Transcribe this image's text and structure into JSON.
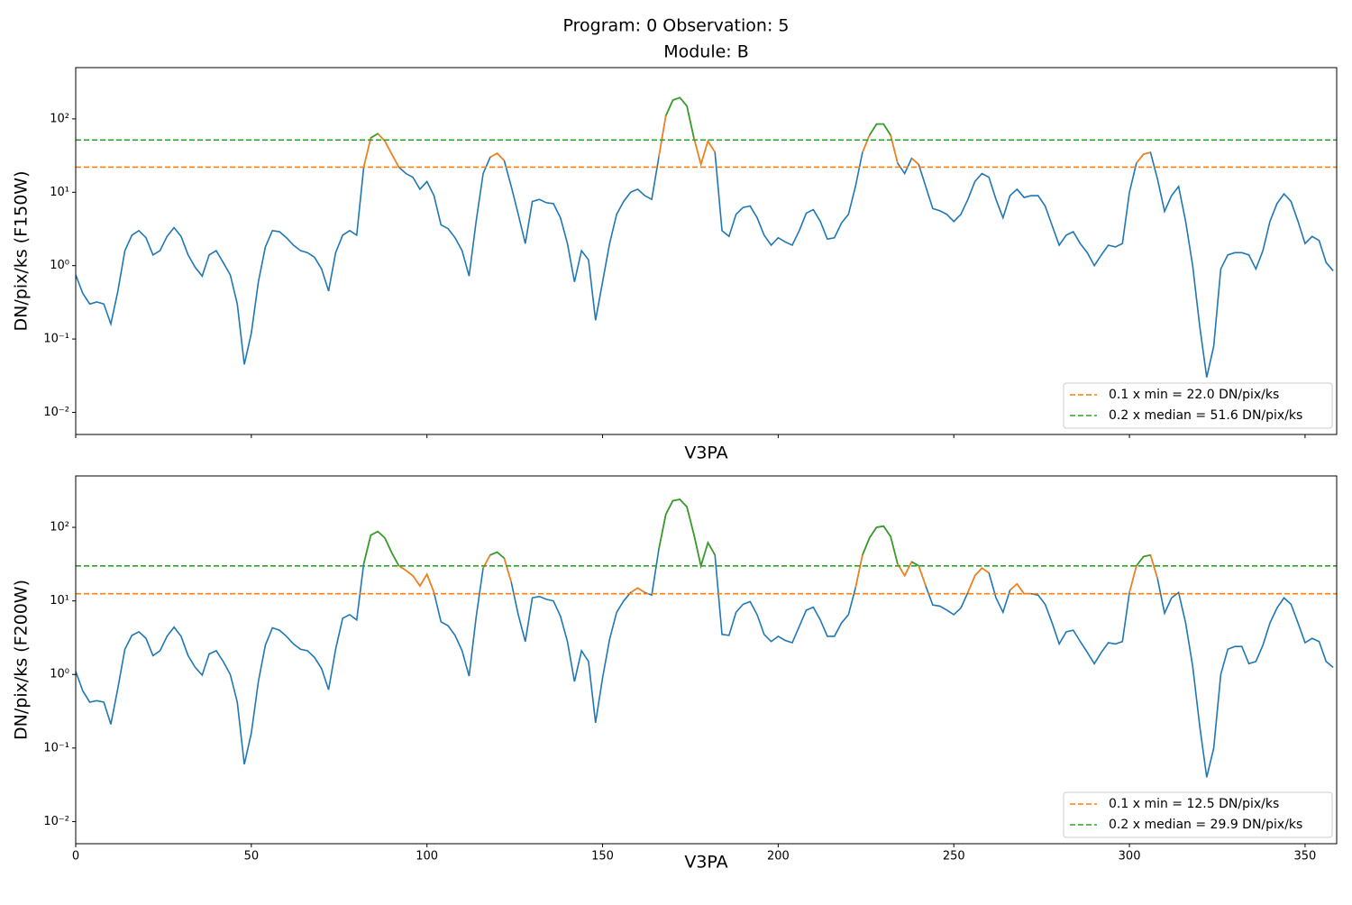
{
  "title": "Program: 0 Observation: 5",
  "chart_data": [
    {
      "type": "line",
      "title": "Module: B",
      "xlabel": "V3PA",
      "ylabel": "DN/pix/ks (F150W)",
      "yscale": "log",
      "xlim": [
        0,
        359
      ],
      "ylim": [
        0.005,
        500
      ],
      "xticks": [
        0,
        50,
        100,
        150,
        200,
        250,
        300,
        350
      ],
      "show_xtick_labels": false,
      "yticks": [
        {
          "value": 0.01,
          "label": "10⁻²"
        },
        {
          "value": 0.1,
          "label": "10⁻¹"
        },
        {
          "value": 1,
          "label": "10⁰"
        },
        {
          "value": 10,
          "label": "10¹"
        },
        {
          "value": 100,
          "label": "10²"
        }
      ],
      "legend_loc": "lower right",
      "x": [
        0,
        2,
        4,
        6,
        8,
        10,
        12,
        14,
        16,
        18,
        20,
        22,
        24,
        26,
        28,
        30,
        32,
        34,
        36,
        38,
        40,
        42,
        44,
        46,
        48,
        50,
        52,
        54,
        56,
        58,
        60,
        62,
        64,
        66,
        68,
        70,
        72,
        74,
        76,
        78,
        80,
        82,
        84,
        86,
        88,
        90,
        92,
        94,
        96,
        98,
        100,
        102,
        104,
        106,
        108,
        110,
        112,
        114,
        116,
        118,
        120,
        122,
        124,
        126,
        128,
        130,
        132,
        134,
        136,
        138,
        140,
        142,
        144,
        146,
        148,
        150,
        152,
        154,
        156,
        158,
        160,
        162,
        164,
        166,
        168,
        170,
        172,
        174,
        176,
        178,
        180,
        182,
        184,
        186,
        188,
        190,
        192,
        194,
        196,
        198,
        200,
        202,
        204,
        206,
        208,
        210,
        212,
        214,
        216,
        218,
        220,
        222,
        224,
        226,
        228,
        230,
        232,
        234,
        236,
        238,
        240,
        242,
        244,
        246,
        248,
        250,
        252,
        254,
        256,
        258,
        260,
        262,
        264,
        266,
        268,
        270,
        272,
        274,
        276,
        278,
        280,
        282,
        284,
        286,
        288,
        290,
        292,
        294,
        296,
        298,
        300,
        302,
        304,
        306,
        308,
        310,
        312,
        314,
        316,
        318,
        320,
        322,
        324,
        326,
        328,
        330,
        332,
        334,
        336,
        338,
        340,
        342,
        344,
        346,
        348,
        350,
        352,
        354,
        356,
        358
      ],
      "series": [
        {
          "color": "#1f77b4",
          "values": [
            0.75,
            0.42,
            0.3,
            0.32,
            0.3,
            0.16,
            0.45,
            1.6,
            2.6,
            3.0,
            2.4,
            1.4,
            1.6,
            2.5,
            3.3,
            2.5,
            1.4,
            0.95,
            0.72,
            1.4,
            1.6,
            1.1,
            0.75,
            0.3,
            0.045,
            0.12,
            0.6,
            1.8,
            3.0,
            2.9,
            2.4,
            1.9,
            1.6,
            1.5,
            1.3,
            0.9,
            0.45,
            1.5,
            2.6,
            3.0,
            2.6,
            22,
            55,
            63,
            50,
            33,
            22,
            18,
            16,
            11,
            14,
            9,
            3.6,
            3.2,
            2.4,
            1.6,
            0.72,
            4,
            18,
            30,
            34,
            27,
            12,
            5,
            2.0,
            7.5,
            8,
            7.2,
            7.0,
            4.5,
            2.0,
            0.6,
            1.6,
            1.2,
            0.18,
            0.6,
            2.0,
            5,
            7.5,
            10,
            11,
            9,
            8,
            30,
            110,
            180,
            195,
            150,
            55,
            24,
            50,
            35,
            3,
            2.5,
            5,
            6.2,
            6.5,
            4.5,
            2.6,
            1.9,
            2.4,
            2.1,
            1.9,
            3.0,
            5.2,
            5.8,
            4.0,
            2.3,
            2.4,
            3.8,
            5,
            12,
            35,
            60,
            85,
            85,
            60,
            25,
            18,
            29,
            24,
            12,
            6,
            5.6,
            5,
            4,
            5,
            8,
            14,
            18,
            16,
            8,
            4.5,
            9,
            11,
            8.5,
            9,
            9,
            6.5,
            3.5,
            1.9,
            2.6,
            2.9,
            2.0,
            1.5,
            1.0,
            1.4,
            1.9,
            1.8,
            2.0,
            10,
            25,
            33,
            35,
            15,
            5.5,
            9,
            12,
            4,
            1.0,
            0.15,
            0.03,
            0.08,
            0.9,
            1.4,
            1.5,
            1.5,
            1.4,
            0.9,
            1.6,
            4,
            7,
            9.5,
            7.5,
            4,
            2.0,
            2.5,
            2.2,
            1.1,
            0.85
          ]
        }
      ],
      "thresholds": [
        {
          "name": "0.1 x min = 22.0 DN/pix/ks",
          "value": 22.0,
          "color": "#ff7f0e"
        },
        {
          "name": "0.2 x median = 51.6 DN/pix/ks",
          "value": 51.6,
          "color": "#2ca02c"
        }
      ]
    },
    {
      "type": "line",
      "xlabel": "V3PA",
      "ylabel": "DN/pix/ks (F200W)",
      "yscale": "log",
      "xlim": [
        0,
        359
      ],
      "ylim": [
        0.005,
        500
      ],
      "xticks": [
        0,
        50,
        100,
        150,
        200,
        250,
        300,
        350
      ],
      "show_xtick_labels": true,
      "yticks": [
        {
          "value": 0.01,
          "label": "10⁻²"
        },
        {
          "value": 0.1,
          "label": "10⁻¹"
        },
        {
          "value": 1,
          "label": "10⁰"
        },
        {
          "value": 10,
          "label": "10¹"
        },
        {
          "value": 100,
          "label": "10²"
        }
      ],
      "legend_loc": "lower right",
      "x": [
        0,
        2,
        4,
        6,
        8,
        10,
        12,
        14,
        16,
        18,
        20,
        22,
        24,
        26,
        28,
        30,
        32,
        34,
        36,
        38,
        40,
        42,
        44,
        46,
        48,
        50,
        52,
        54,
        56,
        58,
        60,
        62,
        64,
        66,
        68,
        70,
        72,
        74,
        76,
        78,
        80,
        82,
        84,
        86,
        88,
        90,
        92,
        94,
        96,
        98,
        100,
        102,
        104,
        106,
        108,
        110,
        112,
        114,
        116,
        118,
        120,
        122,
        124,
        126,
        128,
        130,
        132,
        134,
        136,
        138,
        140,
        142,
        144,
        146,
        148,
        150,
        152,
        154,
        156,
        158,
        160,
        162,
        164,
        166,
        168,
        170,
        172,
        174,
        176,
        178,
        180,
        182,
        184,
        186,
        188,
        190,
        192,
        194,
        196,
        198,
        200,
        202,
        204,
        206,
        208,
        210,
        212,
        214,
        216,
        218,
        220,
        222,
        224,
        226,
        228,
        230,
        232,
        234,
        236,
        238,
        240,
        242,
        244,
        246,
        248,
        250,
        252,
        254,
        256,
        258,
        260,
        262,
        264,
        266,
        268,
        270,
        272,
        274,
        276,
        278,
        280,
        282,
        284,
        286,
        288,
        290,
        292,
        294,
        296,
        298,
        300,
        302,
        304,
        306,
        308,
        310,
        312,
        314,
        316,
        318,
        320,
        322,
        324,
        326,
        328,
        330,
        332,
        334,
        336,
        338,
        340,
        342,
        344,
        346,
        348,
        350,
        352,
        354,
        356,
        358
      ],
      "series": [
        {
          "color": "#1f77b4",
          "values": [
            1.1,
            0.6,
            0.42,
            0.44,
            0.42,
            0.21,
            0.65,
            2.2,
            3.4,
            3.8,
            3.1,
            1.8,
            2.1,
            3.3,
            4.4,
            3.3,
            1.8,
            1.25,
            0.98,
            1.9,
            2.1,
            1.5,
            1.0,
            0.42,
            0.06,
            0.16,
            0.8,
            2.5,
            4.3,
            4.0,
            3.3,
            2.6,
            2.2,
            2.1,
            1.7,
            1.2,
            0.62,
            2.2,
            5.8,
            6.5,
            5.5,
            32,
            78,
            88,
            72,
            45,
            30,
            26,
            22,
            16,
            23,
            13,
            5.2,
            4.6,
            3.4,
            2.1,
            0.95,
            6,
            28,
            42,
            46,
            38,
            18,
            6.5,
            2.8,
            11,
            11.5,
            10.5,
            10,
            6.2,
            2.8,
            0.8,
            2.1,
            1.5,
            0.22,
            0.9,
            3,
            7,
            10,
            13,
            15,
            13,
            12,
            50,
            150,
            230,
            240,
            190,
            80,
            30,
            62,
            42,
            3.5,
            3.4,
            7,
            9,
            9.8,
            6.5,
            3.5,
            2.8,
            3.3,
            2.9,
            2.7,
            4.5,
            7.5,
            8.2,
            5.5,
            3.3,
            3.3,
            5,
            6.5,
            15,
            42,
            72,
            100,
            104,
            75,
            32,
            22,
            34,
            30,
            16,
            8.8,
            8.5,
            7.5,
            6.5,
            8,
            13,
            22,
            28,
            24,
            11,
            7,
            14,
            17,
            12.5,
            12.5,
            12,
            9,
            5,
            2.6,
            3.8,
            4,
            2.8,
            2.0,
            1.4,
            2.0,
            2.7,
            2.6,
            2.8,
            13,
            30,
            40,
            42,
            20,
            6.8,
            11,
            13,
            5,
            1.3,
            0.2,
            0.04,
            0.1,
            1.0,
            2.2,
            2.4,
            2.4,
            1.4,
            1.5,
            2.5,
            5,
            8,
            11,
            9,
            5,
            2.7,
            3.1,
            2.8,
            1.5,
            1.25
          ]
        }
      ],
      "thresholds": [
        {
          "name": "0.1 x min = 12.5 DN/pix/ks",
          "value": 12.5,
          "color": "#ff7f0e"
        },
        {
          "name": "0.2 x median = 29.9 DN/pix/ks",
          "value": 29.9,
          "color": "#2ca02c"
        }
      ]
    }
  ]
}
